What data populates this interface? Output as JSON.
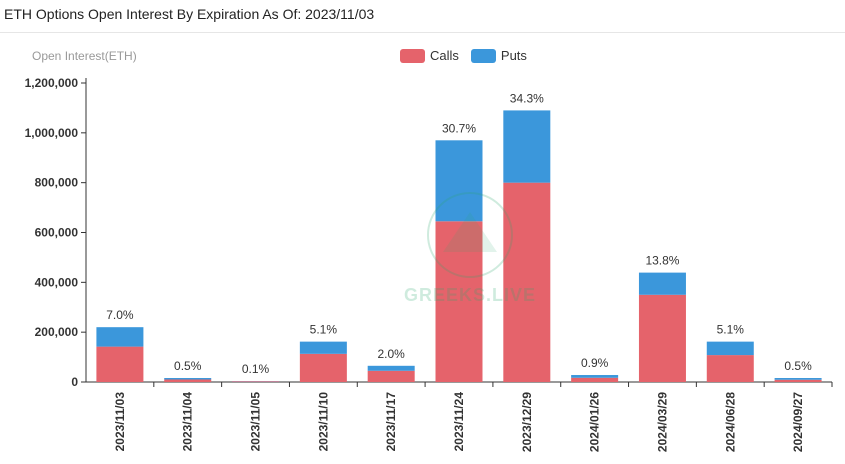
{
  "header": {
    "title": "ETH Options Open Interest By Expiration As Of: 2023/11/03"
  },
  "watermark": {
    "text": "GREEKS.LIVE"
  },
  "chart_data": {
    "type": "bar",
    "stacked": true,
    "ylabel": "Open Interest(ETH)",
    "ylim": [
      0,
      1200000
    ],
    "yticks": [
      "0",
      "200,000",
      "400,000",
      "600,000",
      "800,000",
      "1,000,000",
      "1,200,000"
    ],
    "ytick_values": [
      0,
      200000,
      400000,
      600000,
      800000,
      1000000,
      1200000
    ],
    "legend_position": "top-center",
    "categories": [
      "2023/11/03",
      "2023/11/04",
      "2023/11/05",
      "2023/11/10",
      "2023/11/17",
      "2023/11/24",
      "2023/12/29",
      "2024/01/26",
      "2024/03/29",
      "2024/06/28",
      "2024/09/27"
    ],
    "series": [
      {
        "name": "Calls",
        "color": "#e5636b",
        "values": [
          142000,
          10000,
          3000,
          113000,
          45000,
          645000,
          800000,
          17000,
          350000,
          108000,
          9000
        ]
      },
      {
        "name": "Puts",
        "color": "#3b97db",
        "values": [
          78000,
          6000,
          1000,
          49000,
          20000,
          325000,
          290000,
          11000,
          89000,
          54000,
          7000
        ]
      }
    ],
    "labels": [
      "7.0%",
      "0.5%",
      "0.1%",
      "5.1%",
      "2.0%",
      "30.7%",
      "34.3%",
      "0.9%",
      "13.8%",
      "5.1%",
      "0.5%"
    ],
    "grid": false
  }
}
